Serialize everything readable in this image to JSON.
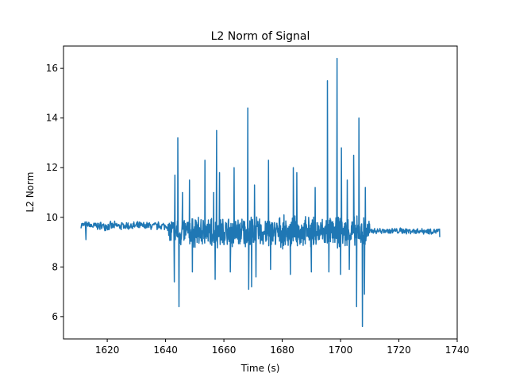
{
  "chart_data": {
    "type": "line",
    "title": "L2 Norm of Signal",
    "xlabel": "Time (s)",
    "ylabel": "L2 Norm",
    "xlim": [
      1605,
      1740
    ],
    "ylim": [
      5.1,
      16.9
    ],
    "xticks": [
      1620,
      1640,
      1660,
      1680,
      1700,
      1720,
      1740
    ],
    "yticks": [
      6,
      8,
      10,
      12,
      14,
      16
    ],
    "grid": false,
    "series_color": "#1f77b4",
    "segments": [
      {
        "range": [
          1611,
          1614
        ],
        "base": 9.7,
        "amp": 0.15
      },
      {
        "range": [
          1614,
          1641
        ],
        "base": 9.65,
        "amp": 0.2
      },
      {
        "range": [
          1641,
          1710
        ],
        "base": 9.4,
        "amp": 0.7
      },
      {
        "range": [
          1710,
          1734
        ],
        "base": 9.45,
        "amp": 0.15
      }
    ],
    "peaks": [
      {
        "x": 1643.2,
        "y": 11.7
      },
      {
        "x": 1644.2,
        "y": 13.2
      },
      {
        "x": 1645.8,
        "y": 11.0
      },
      {
        "x": 1648.2,
        "y": 11.5
      },
      {
        "x": 1653.5,
        "y": 12.3
      },
      {
        "x": 1656.5,
        "y": 11.0
      },
      {
        "x": 1657.5,
        "y": 13.5
      },
      {
        "x": 1658.5,
        "y": 11.8
      },
      {
        "x": 1663.5,
        "y": 12.0
      },
      {
        "x": 1668.2,
        "y": 14.4
      },
      {
        "x": 1670.5,
        "y": 11.3
      },
      {
        "x": 1675.3,
        "y": 12.3
      },
      {
        "x": 1683.8,
        "y": 12.0
      },
      {
        "x": 1685.0,
        "y": 11.8
      },
      {
        "x": 1691.3,
        "y": 11.2
      },
      {
        "x": 1695.5,
        "y": 15.5
      },
      {
        "x": 1698.8,
        "y": 16.4
      },
      {
        "x": 1700.3,
        "y": 12.8
      },
      {
        "x": 1702.3,
        "y": 11.5
      },
      {
        "x": 1704.5,
        "y": 12.5
      },
      {
        "x": 1706.3,
        "y": 14.0
      },
      {
        "x": 1707.5,
        "y": 12.3
      },
      {
        "x": 1708.5,
        "y": 11.2
      }
    ],
    "troughs": [
      {
        "x": 1612.7,
        "y": 9.1
      },
      {
        "x": 1643.0,
        "y": 7.4
      },
      {
        "x": 1644.6,
        "y": 6.4
      },
      {
        "x": 1649.2,
        "y": 7.8
      },
      {
        "x": 1657.0,
        "y": 7.5
      },
      {
        "x": 1662.2,
        "y": 7.8
      },
      {
        "x": 1668.5,
        "y": 7.1
      },
      {
        "x": 1669.5,
        "y": 7.2
      },
      {
        "x": 1671.0,
        "y": 7.6
      },
      {
        "x": 1676.0,
        "y": 7.9
      },
      {
        "x": 1682.8,
        "y": 7.7
      },
      {
        "x": 1690.0,
        "y": 7.8
      },
      {
        "x": 1696.0,
        "y": 7.8
      },
      {
        "x": 1700.0,
        "y": 7.7
      },
      {
        "x": 1703.0,
        "y": 7.9
      },
      {
        "x": 1705.5,
        "y": 6.4
      },
      {
        "x": 1707.5,
        "y": 5.6
      },
      {
        "x": 1708.2,
        "y": 6.9
      }
    ]
  }
}
